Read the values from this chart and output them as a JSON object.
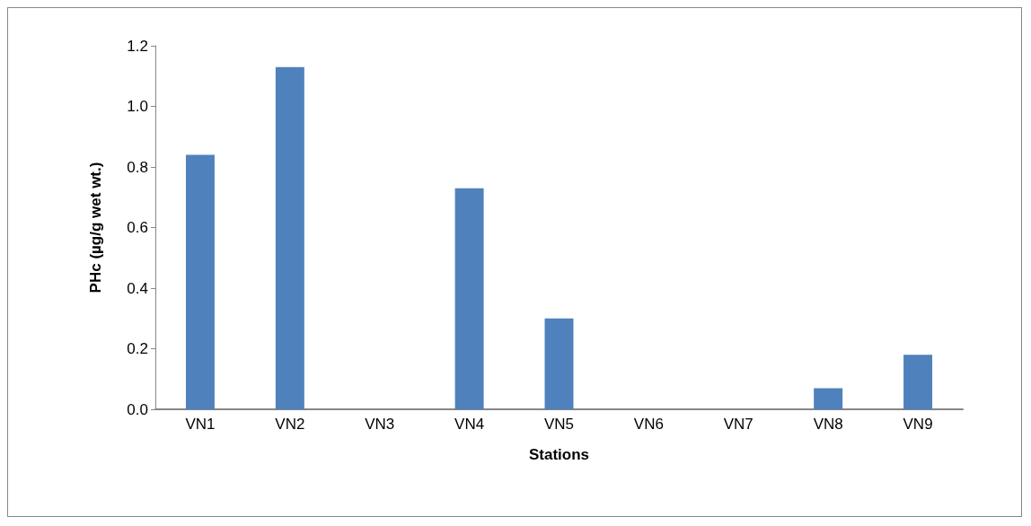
{
  "chart_data": {
    "type": "bar",
    "xlabel": "Stations",
    "ylabel": "PHc (µg/g wet wt.)",
    "categories": [
      "VN1",
      "VN2",
      "VN3",
      "VN4",
      "VN5",
      "VN6",
      "VN7",
      "VN8",
      "VN9"
    ],
    "values": [
      0.84,
      1.13,
      0,
      0.73,
      0.3,
      0,
      0,
      0.07,
      0.18
    ],
    "color": "#4f81bd",
    "ylim": [
      0,
      1.2
    ],
    "yticks": [
      {
        "value": 0,
        "label": "0.0"
      },
      {
        "value": 0.2,
        "label": "0.2"
      },
      {
        "value": 0.4,
        "label": "0.4"
      },
      {
        "value": 0.6,
        "label": "0.6"
      },
      {
        "value": 0.8,
        "label": "0.8"
      },
      {
        "value": 1,
        "label": "1.0"
      },
      {
        "value": 1.2,
        "label": "1.2"
      }
    ],
    "grid": false
  }
}
